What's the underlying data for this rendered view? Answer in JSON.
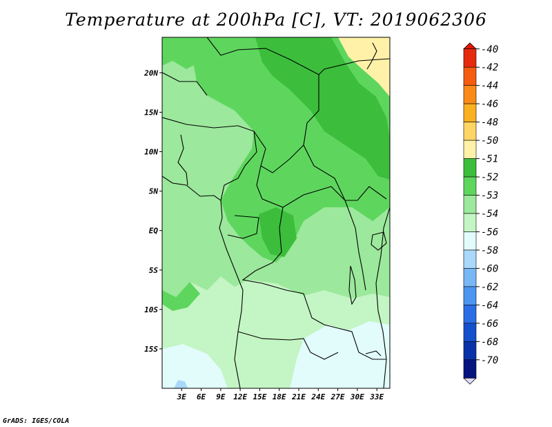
{
  "title": "Temperature at 200hPa [C], VT: 2019062306",
  "credit": "GrADS: IGES/COLA",
  "map": {
    "lon_range": [
      0,
      35
    ],
    "lat_range": [
      -20,
      24.5
    ],
    "lon_ticks": [
      {
        "value": 3,
        "label": "3E"
      },
      {
        "value": 6,
        "label": "6E"
      },
      {
        "value": 9,
        "label": "9E"
      },
      {
        "value": 12,
        "label": "12E"
      },
      {
        "value": 15,
        "label": "15E"
      },
      {
        "value": 18,
        "label": "18E"
      },
      {
        "value": 21,
        "label": "21E"
      },
      {
        "value": 24,
        "label": "24E"
      },
      {
        "value": 27,
        "label": "27E"
      },
      {
        "value": 30,
        "label": "30E"
      },
      {
        "value": 33,
        "label": "33E"
      }
    ],
    "lat_ticks": [
      {
        "value": 20,
        "label": "20N"
      },
      {
        "value": 15,
        "label": "15N"
      },
      {
        "value": 10,
        "label": "10N"
      },
      {
        "value": 5,
        "label": "5N"
      },
      {
        "value": 0,
        "label": "EQ"
      },
      {
        "value": -5,
        "label": "5S"
      },
      {
        "value": -10,
        "label": "10S"
      },
      {
        "value": -15,
        "label": "15S"
      }
    ]
  },
  "colorbar": {
    "labels": [
      "-40",
      "-42",
      "-44",
      "-46",
      "-48",
      "-50",
      "-51",
      "-52",
      "-53",
      "-54",
      "-56",
      "-58",
      "-60",
      "-62",
      "-64",
      "-66",
      "-68",
      "-70"
    ],
    "colors": [
      "#e52a0e",
      "#f55c10",
      "#f98a18",
      "#fbb022",
      "#fdd564",
      "#fff2a8",
      "#3cbe3c",
      "#5ed65e",
      "#9ce89c",
      "#c4f5c4",
      "#e2fcfc",
      "#aad8fa",
      "#78b8f5",
      "#4a96f0",
      "#2a6ee6",
      "#1450cc",
      "#0a32a8",
      "#061480",
      "#040064"
    ],
    "top_color": "#e21408",
    "bottom_color": "#e0dcf8"
  }
}
